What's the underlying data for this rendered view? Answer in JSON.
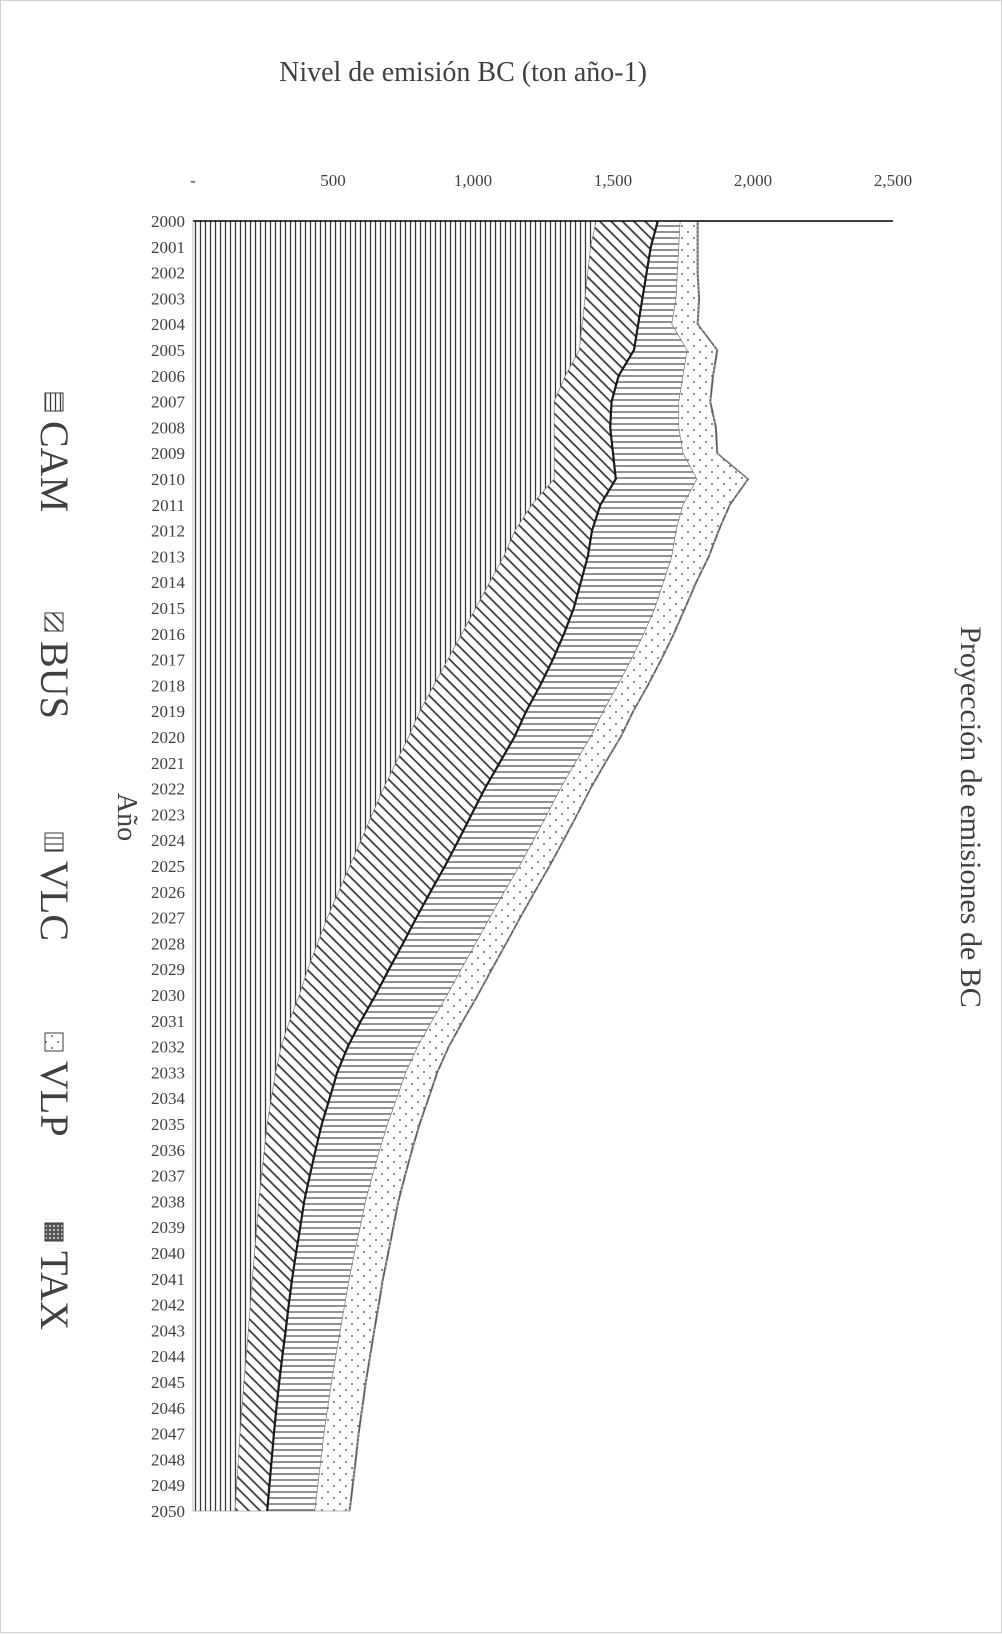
{
  "chart_data": {
    "type": "area",
    "stacked": true,
    "title": "Proyección de emisiones de BC",
    "xlabel": "Año",
    "ylabel": "Nivel de emisión BC (ton año-1)",
    "x": [
      "2000",
      "2001",
      "2002",
      "2003",
      "2004",
      "2005",
      "2006",
      "2007",
      "2008",
      "2009",
      "2010",
      "2011",
      "2012",
      "2013",
      "2014",
      "2015",
      "2016",
      "2017",
      "2018",
      "2019",
      "2020",
      "2021",
      "2022",
      "2023",
      "2024",
      "2025",
      "2026",
      "2027",
      "2028",
      "2029",
      "2030",
      "2031",
      "2032",
      "2033",
      "2034",
      "2035",
      "2036",
      "2037",
      "2038",
      "2039",
      "2040",
      "2041",
      "2042",
      "2043",
      "2044",
      "2045",
      "2046",
      "2047",
      "2048",
      "2049",
      "2050"
    ],
    "ylim": [
      0,
      2500
    ],
    "yticks": [
      "-",
      "500",
      "1,000",
      "1,500",
      "2,000",
      "2,500"
    ],
    "ytick_values": [
      0,
      500,
      1000,
      1500,
      2000,
      2500
    ],
    "legend_position": "bottom",
    "series": [
      {
        "name": "CAM",
        "pattern": "horizontal-lines",
        "values": [
          1440,
          1420,
          1410,
          1400,
          1390,
          1380,
          1330,
          1290,
          1290,
          1290,
          1290,
          1210,
          1150,
          1110,
          1060,
          1010,
          960,
          910,
          860,
          810,
          770,
          725,
          680,
          640,
          600,
          560,
          520,
          480,
          445,
          410,
          380,
          345,
          315,
          295,
          280,
          265,
          255,
          245,
          235,
          228,
          220,
          212,
          205,
          198,
          190,
          182,
          175,
          168,
          162,
          156,
          150
        ]
      },
      {
        "name": "BUS",
        "pattern": "diagonal-hatch",
        "values": [
          220,
          215,
          210,
          205,
          200,
          195,
          190,
          205,
          200,
          210,
          220,
          245,
          275,
          300,
          325,
          350,
          365,
          375,
          380,
          380,
          378,
          370,
          362,
          355,
          348,
          340,
          328,
          318,
          305,
          290,
          272,
          255,
          238,
          220,
          208,
          195,
          183,
          172,
          162,
          155,
          148,
          142,
          137,
          133,
          129,
          126,
          123,
          121,
          119,
          117,
          115
        ]
      },
      {
        "name": "VLC",
        "pattern": "vertical-lines",
        "values": [
          80,
          100,
          110,
          120,
          120,
          190,
          230,
          240,
          245,
          250,
          290,
          295,
          300,
          300,
          295,
          290,
          285,
          280,
          277,
          275,
          272,
          270,
          270,
          270,
          268,
          266,
          264,
          262,
          260,
          258,
          256,
          254,
          249,
          245,
          240,
          235,
          229,
          224,
          219,
          214,
          209,
          204,
          200,
          195,
          191,
          187,
          183,
          179,
          176,
          173,
          170
        ]
      },
      {
        "name": "VLP",
        "pattern": "dots",
        "values": [
          60,
          65,
          70,
          80,
          90,
          105,
          105,
          110,
          130,
          120,
          180,
          165,
          150,
          130,
          115,
          105,
          105,
          105,
          105,
          105,
          105,
          105,
          105,
          105,
          105,
          105,
          106,
          106,
          106,
          107,
          107,
          108,
          109,
          110,
          111,
          112,
          113,
          114,
          115,
          116,
          118,
          118,
          119,
          119,
          120,
          120,
          121,
          121,
          122,
          122,
          122
        ]
      },
      {
        "name": "TAX",
        "pattern": "dark-grid",
        "values": [
          5,
          5,
          5,
          5,
          5,
          5,
          5,
          5,
          5,
          5,
          5,
          5,
          5,
          5,
          5,
          5,
          5,
          5,
          5,
          5,
          5,
          5,
          5,
          5,
          5,
          5,
          5,
          5,
          5,
          5,
          5,
          5,
          5,
          5,
          5,
          5,
          5,
          5,
          5,
          5,
          5,
          5,
          5,
          5,
          5,
          5,
          5,
          5,
          5,
          5,
          5
        ]
      }
    ]
  }
}
